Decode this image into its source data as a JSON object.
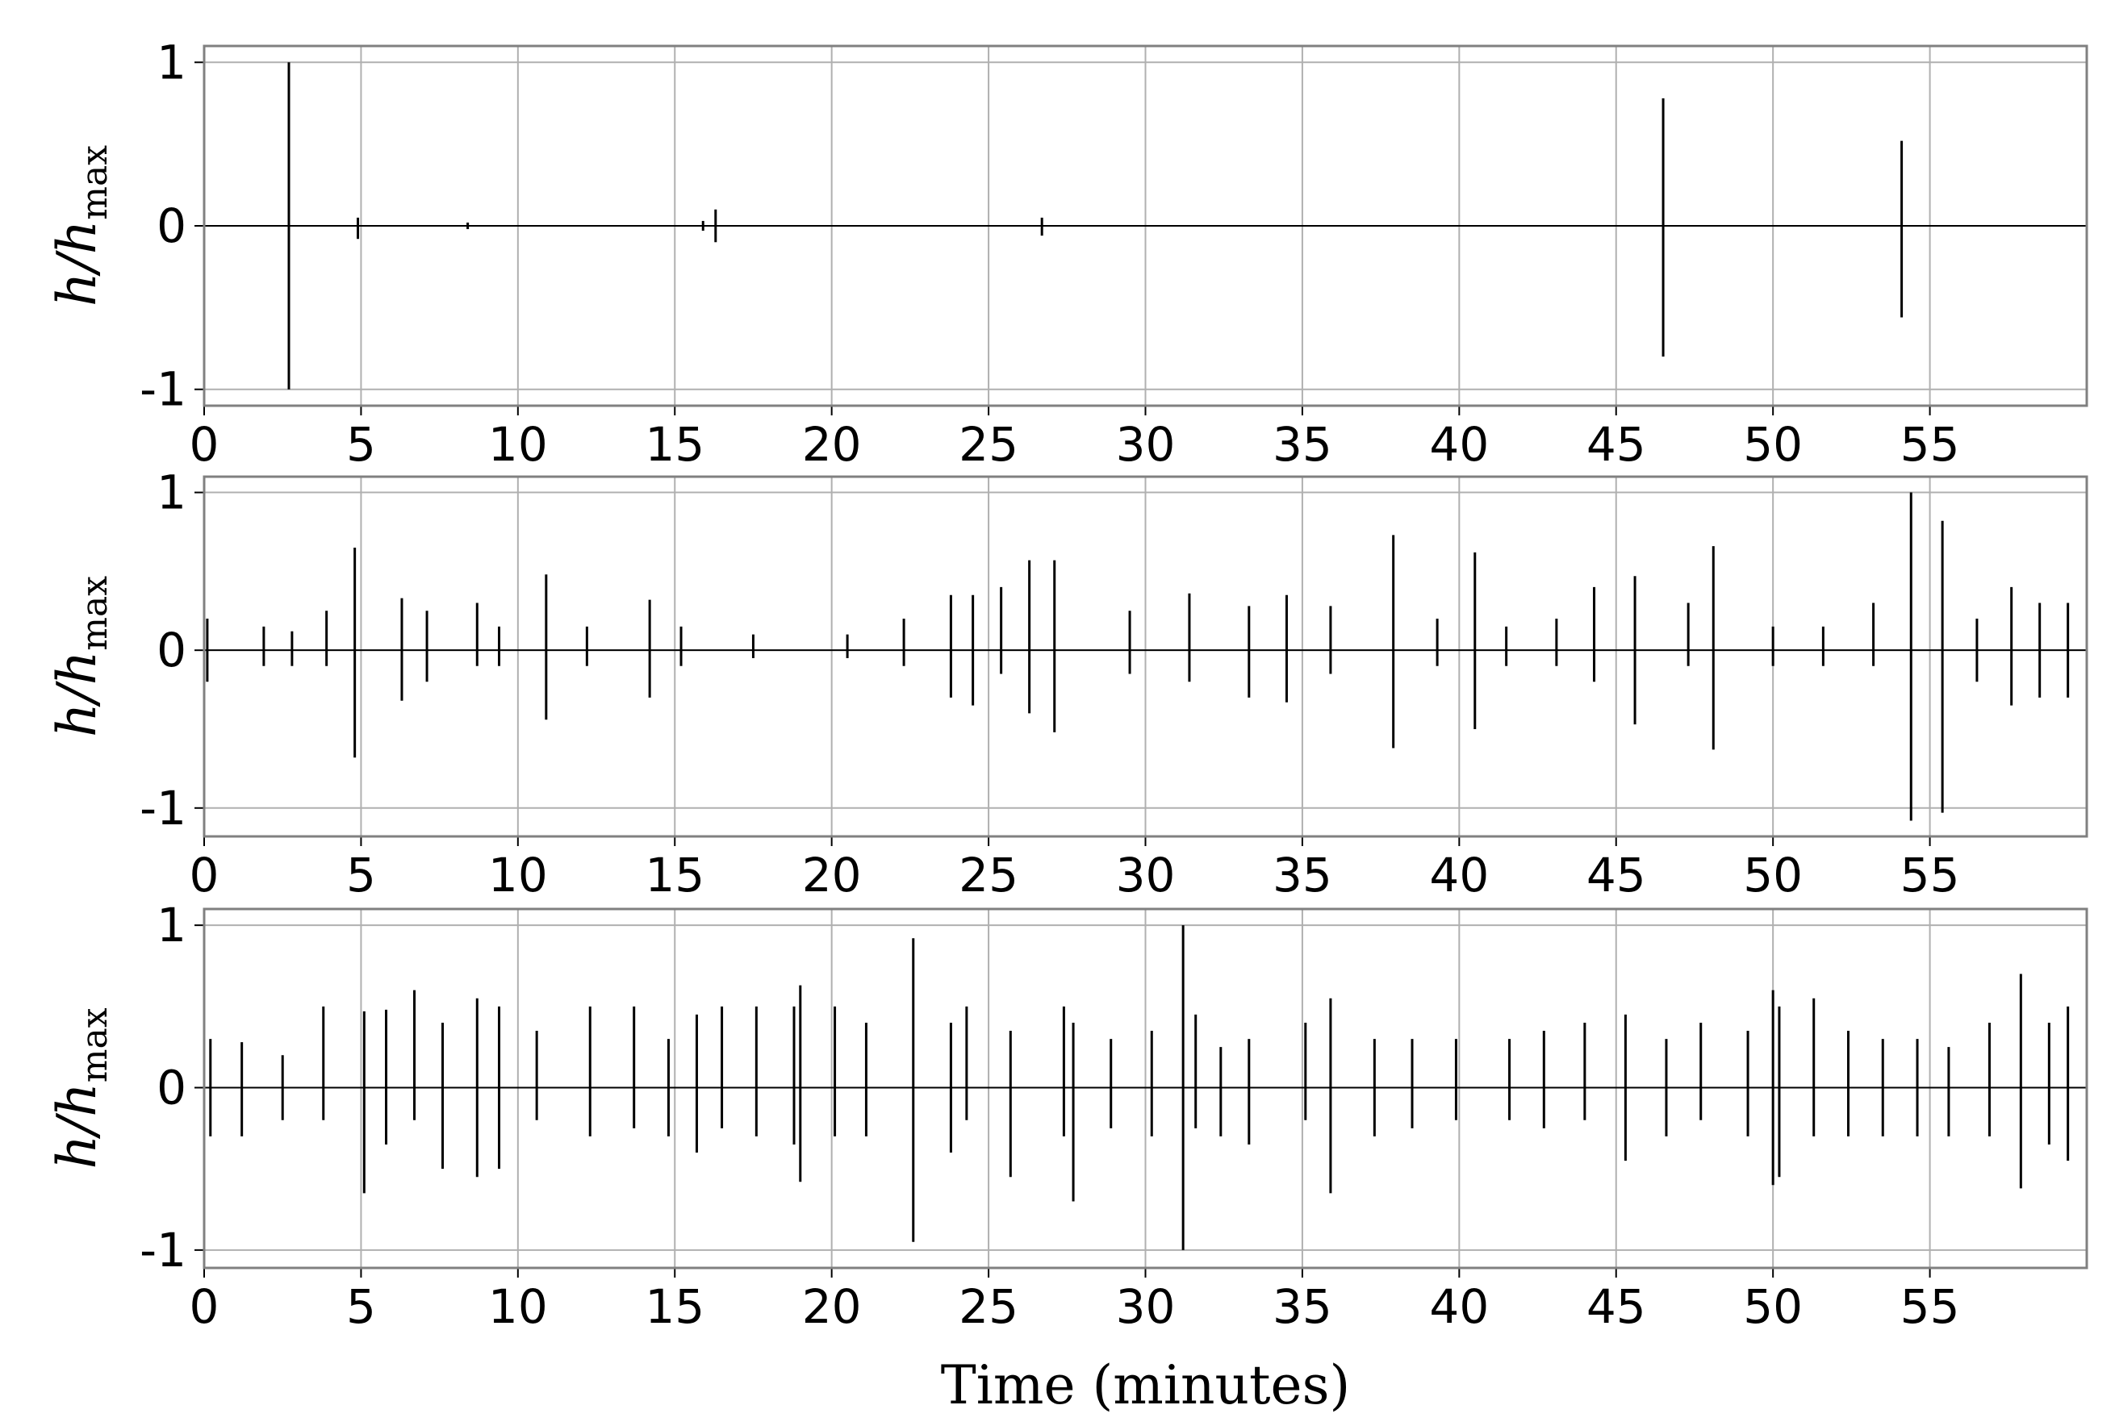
{
  "chart_data": [
    {
      "type": "spikes",
      "ylabel": {
        "main": "h/h",
        "sub": "max"
      },
      "x": [
        2.7,
        4.9,
        8.4,
        15.9,
        16.3,
        26.7,
        46.5,
        54.1
      ],
      "upper": [
        1,
        0.05,
        0.02,
        0.03,
        0.1,
        0.05,
        0.78,
        0.52
      ],
      "lower": [
        -1,
        -0.08,
        -0.02,
        -0.03,
        -0.1,
        -0.06,
        -0.8,
        -0.56
      ],
      "color": "#000000",
      "xlim": [
        0,
        60
      ],
      "ylim": [
        -1.1,
        1.1
      ],
      "xticks": [
        0,
        5,
        10,
        15,
        20,
        25,
        30,
        35,
        40,
        45,
        50,
        55
      ],
      "yticks": [
        -1,
        0,
        1
      ],
      "grid": true
    },
    {
      "type": "spikes",
      "ylabel": {
        "main": "h/h",
        "sub": "max"
      },
      "x": [
        0.1,
        1.9,
        2.8,
        3.9,
        4.8,
        6.3,
        7.1,
        8.7,
        9.4,
        10.9,
        12.2,
        14.2,
        15.2,
        17.5,
        20.5,
        22.3,
        23.8,
        24.5,
        25.4,
        26.3,
        27.1,
        29.5,
        31.4,
        33.3,
        34.5,
        35.9,
        37.9,
        39.3,
        40.5,
        41.5,
        43.1,
        44.3,
        45.6,
        47.3,
        48.1,
        50,
        51.6,
        53.2,
        54.4,
        55.4,
        56.5,
        57.6,
        58.5,
        59.4
      ],
      "upper": [
        0.2,
        0.15,
        0.12,
        0.25,
        0.65,
        0.33,
        0.25,
        0.3,
        0.15,
        0.48,
        0.15,
        0.32,
        0.15,
        0.1,
        0.1,
        0.2,
        0.35,
        0.35,
        0.4,
        0.57,
        0.57,
        0.25,
        0.36,
        0.28,
        0.35,
        0.28,
        0.73,
        0.2,
        0.62,
        0.15,
        0.2,
        0.4,
        0.47,
        0.3,
        0.66,
        0.15,
        0.15,
        0.3,
        1,
        0.82,
        0.2,
        0.4,
        0.3,
        0.3
      ],
      "lower": [
        -0.2,
        -0.1,
        -0.1,
        -0.1,
        -0.68,
        -0.32,
        -0.2,
        -0.1,
        -0.1,
        -0.44,
        -0.1,
        -0.3,
        -0.1,
        -0.05,
        -0.05,
        -0.1,
        -0.3,
        -0.35,
        -0.15,
        -0.4,
        -0.52,
        -0.15,
        -0.2,
        -0.3,
        -0.33,
        -0.15,
        -0.62,
        -0.1,
        -0.5,
        -0.1,
        -0.1,
        -0.2,
        -0.47,
        -0.1,
        -0.63,
        -0.1,
        -0.1,
        -0.1,
        -1.08,
        -1.03,
        -0.2,
        -0.35,
        -0.3,
        -0.3
      ],
      "color": "#000000",
      "xlim": [
        0,
        60
      ],
      "ylim": [
        -1.18,
        1.1
      ],
      "xticks": [
        0,
        5,
        10,
        15,
        20,
        25,
        30,
        35,
        40,
        45,
        50,
        55
      ],
      "yticks": [
        -1,
        0,
        1
      ],
      "grid": true
    },
    {
      "type": "spikes",
      "ylabel": {
        "main": "h/h",
        "sub": "max"
      },
      "xlabel": "Time (minutes)",
      "x": [
        0.2,
        1.2,
        2.5,
        3.8,
        5.1,
        5.8,
        6.7,
        7.6,
        8.7,
        9.4,
        10.6,
        12.3,
        13.7,
        14.8,
        15.7,
        16.5,
        17.6,
        18.8,
        19.0,
        20.1,
        21.1,
        22.6,
        23.8,
        24.3,
        25.7,
        27.4,
        27.7,
        28.9,
        30.2,
        31.2,
        31.6,
        32.4,
        33.3,
        35.1,
        35.9,
        37.3,
        38.5,
        39.9,
        41.6,
        42.7,
        44.0,
        45.3,
        46.6,
        47.7,
        49.2,
        50.0,
        50.2,
        51.3,
        52.4,
        53.5,
        54.6,
        55.6,
        56.9,
        57.9,
        58.8,
        59.4
      ],
      "upper": [
        0.3,
        0.28,
        0.2,
        0.5,
        0.47,
        0.48,
        0.6,
        0.4,
        0.55,
        0.5,
        0.35,
        0.5,
        0.5,
        0.3,
        0.45,
        0.5,
        0.5,
        0.5,
        0.63,
        0.5,
        0.4,
        0.92,
        0.4,
        0.5,
        0.35,
        0.5,
        0.4,
        0.3,
        0.35,
        1,
        0.45,
        0.25,
        0.3,
        0.4,
        0.55,
        0.3,
        0.3,
        0.3,
        0.3,
        0.35,
        0.4,
        0.45,
        0.3,
        0.4,
        0.35,
        0.6,
        0.5,
        0.55,
        0.35,
        0.3,
        0.3,
        0.25,
        0.4,
        0.7,
        0.4,
        0.5
      ],
      "lower": [
        -0.3,
        -0.3,
        -0.2,
        -0.2,
        -0.65,
        -0.35,
        -0.2,
        -0.5,
        -0.55,
        -0.5,
        -0.2,
        -0.3,
        -0.25,
        -0.3,
        -0.4,
        -0.25,
        -0.3,
        -0.35,
        -0.58,
        -0.3,
        -0.3,
        -0.95,
        -0.4,
        -0.2,
        -0.55,
        -0.3,
        -0.7,
        -0.25,
        -0.3,
        -1,
        -0.25,
        -0.3,
        -0.35,
        -0.2,
        -0.65,
        -0.3,
        -0.25,
        -0.2,
        -0.2,
        -0.25,
        -0.2,
        -0.45,
        -0.3,
        -0.2,
        -0.3,
        -0.6,
        -0.55,
        -0.3,
        -0.3,
        -0.3,
        -0.3,
        -0.3,
        -0.3,
        -0.62,
        -0.35,
        -0.45
      ],
      "color": "#000000",
      "xlim": [
        0,
        60
      ],
      "ylim": [
        -1.11,
        1.1
      ],
      "xticks": [
        0,
        5,
        10,
        15,
        20,
        25,
        30,
        35,
        40,
        45,
        50,
        55
      ],
      "yticks": [
        -1,
        0,
        1
      ],
      "grid": true
    }
  ]
}
